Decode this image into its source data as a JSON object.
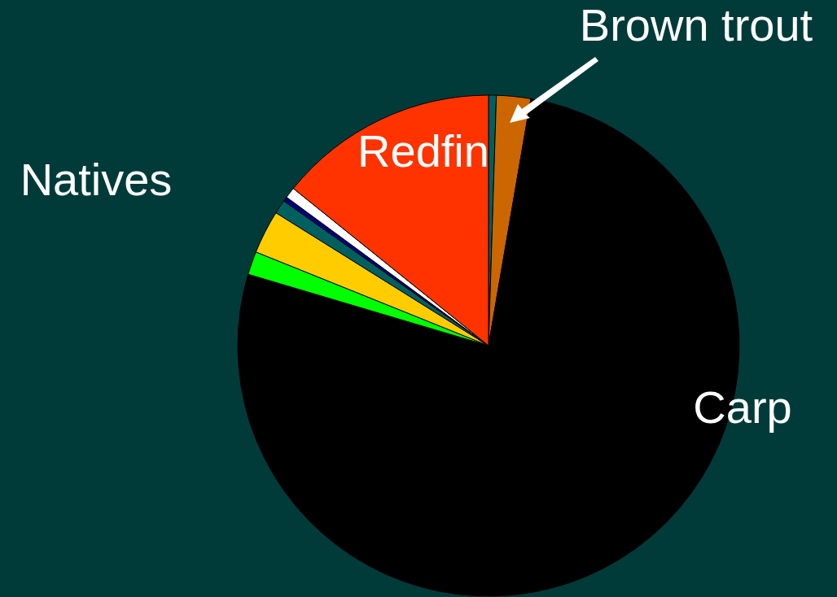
{
  "chart_data": {
    "type": "pie",
    "categories": [
      null,
      "Brown trout",
      "Carp",
      null,
      null,
      null,
      null,
      null,
      "Redfin"
    ],
    "values": [
      0.5,
      2.2,
      76.9,
      1.5,
      2.8,
      0.9,
      0.3,
      0.7,
      14.2
    ],
    "colors": [
      "#006060",
      "#cc6600",
      "#000000",
      "#00ff00",
      "#ffcc00",
      "#006060",
      "#000080",
      "#ffffff",
      "#ff3300"
    ],
    "annotations": [
      "Natives"
    ],
    "legend": false
  }
}
